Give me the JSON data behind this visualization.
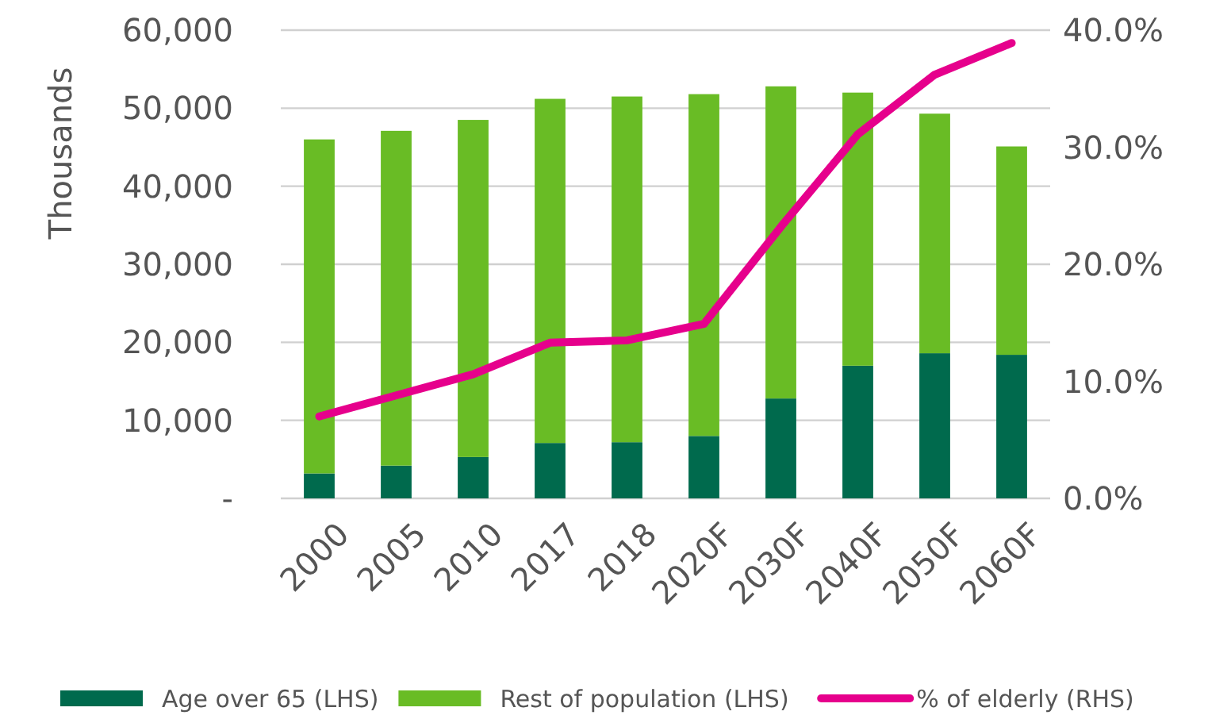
{
  "chart_data": {
    "type": "bar",
    "stacked": true,
    "ylabel": "Thousands",
    "categories": [
      "2000",
      "2005",
      "2010",
      "2017",
      "2018",
      "2020F",
      "2030F",
      "2040F",
      "2050F",
      "2060F"
    ],
    "series": [
      {
        "name": "Age over 65 (LHS)",
        "color": "#006a4d",
        "values": [
          3200,
          4200,
          5300,
          7100,
          7200,
          8000,
          12800,
          17000,
          18600,
          18400
        ]
      },
      {
        "name": "Rest of population (LHS)",
        "color": "#69bc25",
        "values": [
          42800,
          42900,
          43200,
          44100,
          44300,
          43800,
          40000,
          35000,
          30700,
          26700
        ]
      },
      {
        "name": "% of elderly (RHS)",
        "type": "line",
        "axis": "y2",
        "color": "#e6008c",
        "values": [
          7.0,
          8.8,
          10.6,
          13.3,
          13.5,
          14.9,
          23.2,
          31.1,
          36.2,
          38.9
        ]
      }
    ],
    "ylim": [
      0,
      60000
    ],
    "yticks": [
      {
        "value": 0,
        "label": "-"
      },
      {
        "value": 10000,
        "label": "10,000"
      },
      {
        "value": 20000,
        "label": "20,000"
      },
      {
        "value": 30000,
        "label": "30,000"
      },
      {
        "value": 40000,
        "label": "40,000"
      },
      {
        "value": 50000,
        "label": "50,000"
      },
      {
        "value": 60000,
        "label": "60,000"
      }
    ],
    "y2lim": [
      0,
      40
    ],
    "y2ticks": [
      {
        "value": 0,
        "label": "0.0%"
      },
      {
        "value": 10,
        "label": "10.0%"
      },
      {
        "value": 20,
        "label": "20.0%"
      },
      {
        "value": 30,
        "label": "30.0%"
      },
      {
        "value": 40,
        "label": "40.0%"
      }
    ],
    "grid": "y",
    "legend": "bottom",
    "marker": "none"
  }
}
